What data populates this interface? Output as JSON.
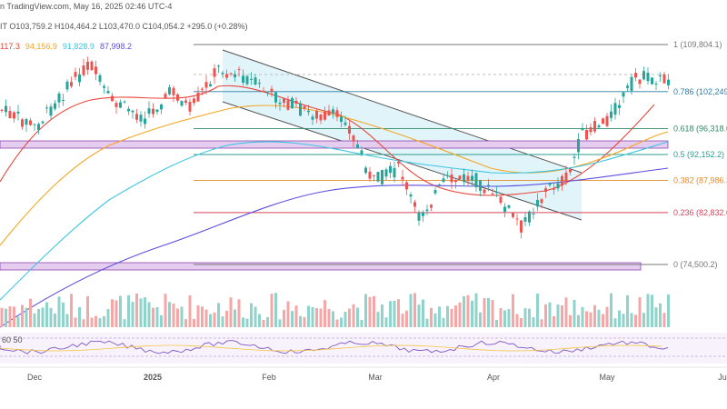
{
  "header": {
    "line1": "n TradingView.com, May 16, 2025 02:46 UTC-4",
    "ohlc": "IT O103,759.2 H104,464.2 L103,470.0 C104,054.2 +295.0 (+0.28%)",
    "ma_values": [
      {
        "text": "117.3",
        "color": "#e8463c"
      },
      {
        "text": "94,156.9",
        "color": "#f5a623"
      },
      {
        "text": "91,828.9",
        "color": "#3ec6e0"
      },
      {
        "text": "87,998.2",
        "color": "#5b4fe0"
      }
    ]
  },
  "fib_levels": [
    {
      "label": "1 (109,804.1)",
      "color": "#777777",
      "value": 109804.1
    },
    {
      "label": "0.786 (102,249.",
      "color": "#2a7fa8",
      "value": 102249
    },
    {
      "label": "0.618 (96,318.0",
      "color": "#2b8a66",
      "value": 96318
    },
    {
      "label": "0.5 (92,152.2)",
      "color": "#2a9d8f",
      "value": 92152.2
    },
    {
      "label": "0.382 (87,986.3",
      "color": "#e38b2c",
      "value": 87986.3
    },
    {
      "label": "0.236 (82,832.0",
      "color": "#d6455d",
      "value": 82832
    },
    {
      "label": "0 (74,500.2)",
      "color": "#777777",
      "value": 74500.2
    }
  ],
  "x_axis": [
    "Dec",
    "2025",
    "Feb",
    "Mar",
    "Apr",
    "May",
    "Ju"
  ],
  "rsi_label": "60 50",
  "colors": {
    "up": "#26a69a",
    "down": "#ef5350",
    "ma_red": "#e8463c",
    "ma_orange": "#f5a623",
    "ma_cyan": "#3ec6e0",
    "ma_purple": "#5b4fe0",
    "channel_fill": "#d9f1f7",
    "zone_fill": "#e5cdf0"
  }
}
